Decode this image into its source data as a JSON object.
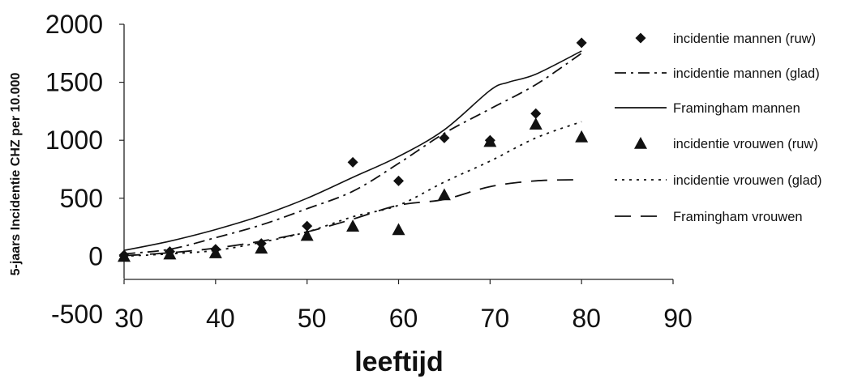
{
  "chart_data": {
    "type": "line",
    "xlabel": "leeftijd",
    "ylabel": "5-jaars Incidentie CHZ per 10.000",
    "xlim": [
      30,
      90
    ],
    "ylim": [
      -500,
      2000
    ],
    "x_ticks": [
      "30",
      "40",
      "50",
      "60",
      "70",
      "80",
      "90"
    ],
    "y_ticks": [
      "2000",
      "1500",
      "1000",
      "500",
      "0",
      "-500"
    ],
    "x_tick_values": [
      30,
      40,
      50,
      60,
      70,
      80,
      90
    ],
    "y_tick_values": [
      2000,
      1500,
      1000,
      500,
      0,
      -500
    ],
    "grid": false,
    "legend_position": "right",
    "series": [
      {
        "name": "incidentie mannen (ruw)",
        "style": "markers",
        "marker": "diamond",
        "x": [
          30,
          35,
          40,
          45,
          50,
          55,
          60,
          65,
          70,
          75,
          80
        ],
        "y": [
          10,
          40,
          60,
          110,
          260,
          810,
          650,
          1020,
          1000,
          1230,
          1840
        ]
      },
      {
        "name": "incidentie mannen (glad)",
        "style": "dashdot",
        "x": [
          30,
          35,
          40,
          45,
          50,
          55,
          60,
          65,
          70,
          75,
          80
        ],
        "y": [
          20,
          60,
          160,
          270,
          410,
          560,
          800,
          1060,
          1270,
          1480,
          1750
        ]
      },
      {
        "name": "Framingham mannen",
        "style": "solid",
        "x": [
          30,
          35,
          40,
          45,
          50,
          55,
          60,
          65,
          70,
          72,
          75,
          80
        ],
        "y": [
          50,
          130,
          230,
          350,
          500,
          680,
          860,
          1090,
          1430,
          1500,
          1570,
          1770
        ]
      },
      {
        "name": "incidentie vrouwen (ruw)",
        "style": "markers",
        "marker": "triangle",
        "x": [
          30,
          35,
          40,
          45,
          50,
          55,
          60,
          65,
          70,
          75,
          80
        ],
        "y": [
          0,
          20,
          30,
          70,
          180,
          260,
          230,
          530,
          990,
          1140,
          1030
        ]
      },
      {
        "name": "incidentie vrouwen (glad)",
        "style": "dotted",
        "x": [
          30,
          35,
          40,
          45,
          50,
          55,
          60,
          65,
          70,
          75,
          80
        ],
        "y": [
          0,
          20,
          50,
          120,
          210,
          340,
          440,
          640,
          820,
          1020,
          1160
        ]
      },
      {
        "name": "Framingham vrouwen",
        "style": "dashed",
        "x": [
          30,
          35,
          40,
          45,
          50,
          55,
          60,
          65,
          70,
          75,
          80
        ],
        "y": [
          5,
          30,
          70,
          130,
          210,
          320,
          440,
          490,
          600,
          650,
          660
        ]
      }
    ]
  }
}
